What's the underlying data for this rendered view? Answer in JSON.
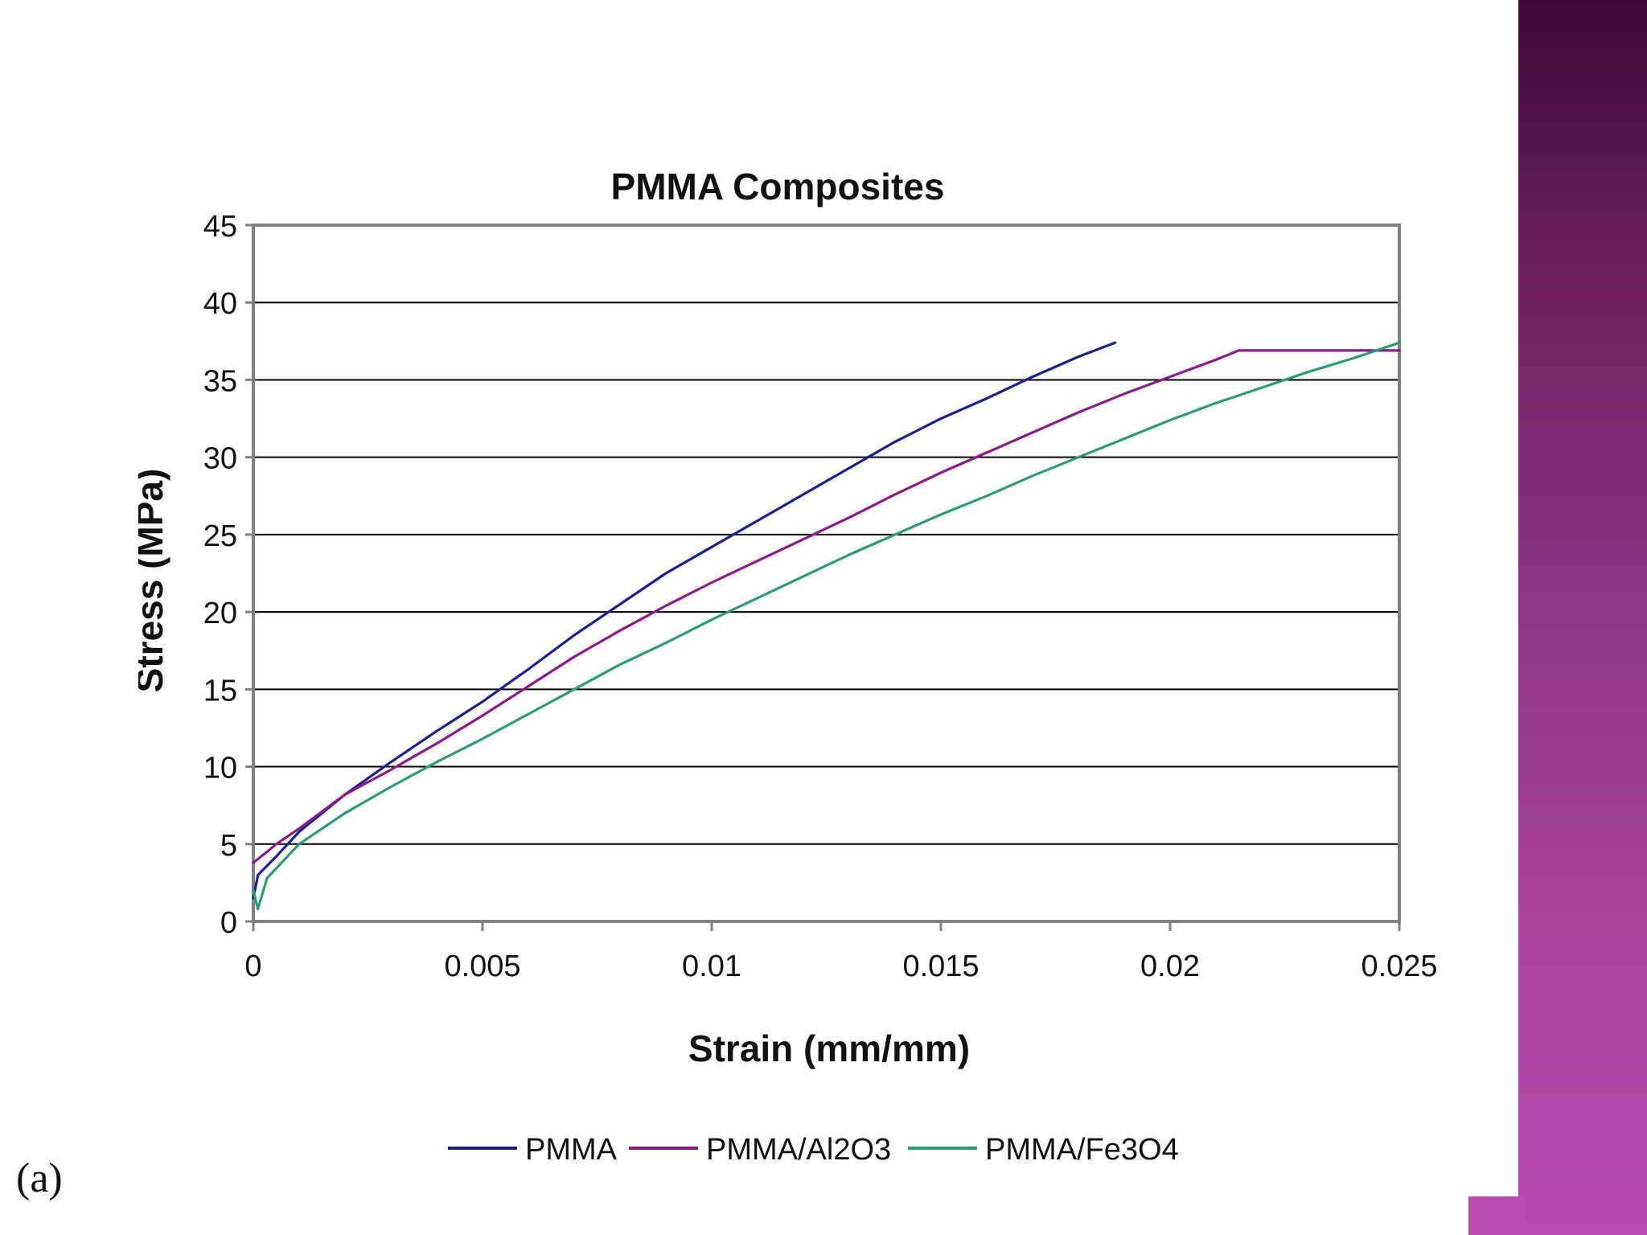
{
  "colors": {
    "accent_band": "#8e3583",
    "accent_band_dark": "#3d0a35",
    "gridline": "#000000",
    "plot_border": "#808080"
  },
  "figure_label": "(a)",
  "chart_data": {
    "type": "line",
    "title": "PMMA Composites",
    "xlabel": "Strain (mm/mm)",
    "ylabel": "Stress (MPa)",
    "xlim": [
      0,
      0.025
    ],
    "ylim": [
      0,
      45
    ],
    "x_ticks": [
      0,
      0.005,
      0.01,
      0.015,
      0.02,
      0.025
    ],
    "x_tick_labels": [
      "0",
      "0.005",
      "0.01",
      "0.015",
      "0.02",
      "0.025"
    ],
    "y_ticks": [
      0,
      5,
      10,
      15,
      20,
      25,
      30,
      35,
      40,
      45
    ],
    "y_tick_labels": [
      "0",
      "5",
      "10",
      "15",
      "20",
      "25",
      "30",
      "35",
      "40",
      "45"
    ],
    "grid": "horizontal",
    "legend_position": "bottom",
    "series": [
      {
        "name": "PMMA",
        "color": "#1f1f8c",
        "points": [
          [
            0,
            1.5
          ],
          [
            0.0001,
            3.0
          ],
          [
            0.0005,
            4.2
          ],
          [
            0.001,
            5.8
          ],
          [
            0.002,
            8.2
          ],
          [
            0.003,
            10.3
          ],
          [
            0.004,
            12.3
          ],
          [
            0.005,
            14.2
          ],
          [
            0.006,
            16.3
          ],
          [
            0.007,
            18.5
          ],
          [
            0.008,
            20.5
          ],
          [
            0.009,
            22.5
          ],
          [
            0.01,
            24.2
          ],
          [
            0.011,
            25.9
          ],
          [
            0.012,
            27.6
          ],
          [
            0.013,
            29.3
          ],
          [
            0.014,
            31.0
          ],
          [
            0.015,
            32.5
          ],
          [
            0.016,
            33.8
          ],
          [
            0.017,
            35.2
          ],
          [
            0.018,
            36.5
          ],
          [
            0.0188,
            37.4
          ]
        ]
      },
      {
        "name": "PMMA/Al2O3",
        "color": "#8b1a8b",
        "points": [
          [
            0,
            3.8
          ],
          [
            0.0003,
            4.5
          ],
          [
            0.0005,
            5.0
          ],
          [
            0.001,
            6.0
          ],
          [
            0.002,
            8.2
          ],
          [
            0.003,
            9.8
          ],
          [
            0.004,
            11.5
          ],
          [
            0.005,
            13.3
          ],
          [
            0.006,
            15.2
          ],
          [
            0.007,
            17.1
          ],
          [
            0.008,
            18.8
          ],
          [
            0.009,
            20.4
          ],
          [
            0.01,
            21.9
          ],
          [
            0.011,
            23.3
          ],
          [
            0.012,
            24.7
          ],
          [
            0.013,
            26.1
          ],
          [
            0.014,
            27.6
          ],
          [
            0.015,
            29.0
          ],
          [
            0.016,
            30.3
          ],
          [
            0.017,
            31.6
          ],
          [
            0.018,
            32.9
          ],
          [
            0.019,
            34.1
          ],
          [
            0.02,
            35.2
          ],
          [
            0.021,
            36.3
          ],
          [
            0.0215,
            36.9
          ],
          [
            0.025,
            36.9
          ]
        ]
      },
      {
        "name": "PMMA/Fe3O4",
        "color": "#2e9c70",
        "points": [
          [
            0,
            2.0
          ],
          [
            0.0001,
            0.8
          ],
          [
            0.0003,
            2.8
          ],
          [
            0.001,
            5.0
          ],
          [
            0.002,
            7.0
          ],
          [
            0.003,
            8.7
          ],
          [
            0.004,
            10.3
          ],
          [
            0.005,
            11.8
          ],
          [
            0.006,
            13.4
          ],
          [
            0.007,
            15.0
          ],
          [
            0.008,
            16.6
          ],
          [
            0.009,
            18.0
          ],
          [
            0.01,
            19.5
          ],
          [
            0.011,
            20.9
          ],
          [
            0.012,
            22.3
          ],
          [
            0.013,
            23.7
          ],
          [
            0.014,
            25.0
          ],
          [
            0.015,
            26.3
          ],
          [
            0.016,
            27.5
          ],
          [
            0.017,
            28.8
          ],
          [
            0.018,
            30.0
          ],
          [
            0.019,
            31.2
          ],
          [
            0.02,
            32.4
          ],
          [
            0.021,
            33.5
          ],
          [
            0.022,
            34.5
          ],
          [
            0.023,
            35.5
          ],
          [
            0.024,
            36.4
          ],
          [
            0.025,
            37.4
          ]
        ]
      }
    ]
  }
}
